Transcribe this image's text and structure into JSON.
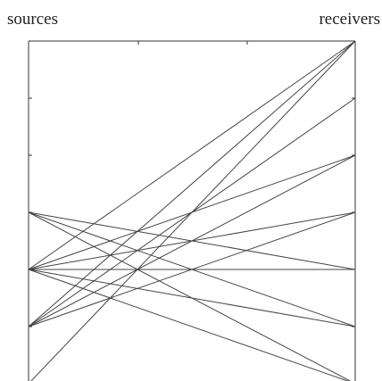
{
  "labels": {
    "sources": "sources",
    "receivers": "receivers"
  },
  "frame": {
    "stroke": "#333333",
    "open_bottom": true
  },
  "diagram": {
    "source_levels": [
      3,
      4,
      5,
      6
    ],
    "receiver_levels": [
      0,
      1,
      2,
      3,
      4,
      5,
      6
    ],
    "rays": [
      [
        3,
        4
      ],
      [
        3,
        5
      ],
      [
        3,
        6
      ],
      [
        4,
        0
      ],
      [
        4,
        2
      ],
      [
        4,
        3
      ],
      [
        4,
        4
      ],
      [
        4,
        5
      ],
      [
        4,
        6
      ],
      [
        5,
        0
      ],
      [
        5,
        1
      ],
      [
        5,
        2
      ],
      [
        5,
        3
      ],
      [
        6,
        0
      ]
    ],
    "line_color": "#444444"
  }
}
